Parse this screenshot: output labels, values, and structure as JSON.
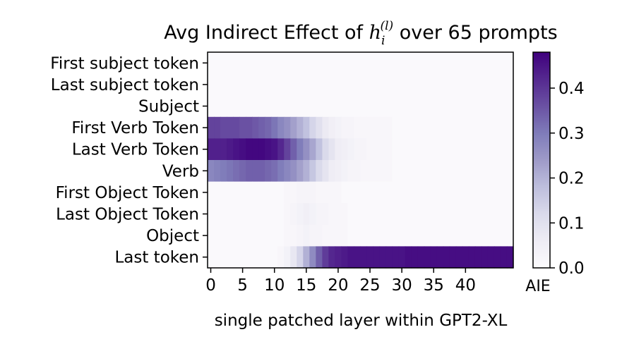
{
  "chart_data": {
    "type": "heatmap",
    "title_prefix": "Avg Indirect Effect of",
    "title_symbol_base": "h",
    "title_symbol_sub": "i",
    "title_symbol_sup": "(l)",
    "title_suffix": "over 65 prompts",
    "xlabel": "single patched layer within GPT2-XL",
    "ylabel": "",
    "colorbar_label": "AIE",
    "colormap": "Purples",
    "color_low": "#fcfbfd",
    "color_high": "#3f007d",
    "vmin": 0.0,
    "vmax": 0.48,
    "colorbar_ticks": [
      "0.0",
      "0.1",
      "0.2",
      "0.3",
      "0.4"
    ],
    "x_ticks": [
      0,
      5,
      10,
      15,
      20,
      25,
      30,
      35,
      40
    ],
    "rows": [
      "First subject token",
      "Last subject token",
      "Subject",
      "First Verb Token",
      "Last Verb Token",
      "Verb",
      "First Object Token",
      "Last Object Token",
      "Object",
      "Last token"
    ],
    "num_layers": 48,
    "series": [
      {
        "name": "First subject token",
        "values": [
          0.01,
          0.01,
          0.01,
          0.01,
          0.01,
          0.01,
          0.01,
          0.01,
          0.01,
          0.01,
          0.01,
          0.01,
          0.01,
          0.01,
          0.01,
          0.01,
          0.01,
          0.01,
          0.01,
          0.01,
          0.01,
          0.01,
          0.01,
          0.01,
          0.01,
          0.01,
          0.01,
          0.01,
          0.01,
          0.01,
          0.01,
          0.01,
          0.01,
          0.01,
          0.01,
          0.01,
          0.01,
          0.01,
          0.01,
          0.01,
          0.01,
          0.01,
          0.01,
          0.01,
          0.01,
          0.01,
          0.01,
          0.01
        ]
      },
      {
        "name": "Last subject token",
        "values": [
          0.01,
          0.01,
          0.01,
          0.01,
          0.01,
          0.01,
          0.01,
          0.01,
          0.01,
          0.01,
          0.01,
          0.01,
          0.01,
          0.01,
          0.01,
          0.01,
          0.01,
          0.01,
          0.01,
          0.01,
          0.01,
          0.01,
          0.01,
          0.01,
          0.01,
          0.01,
          0.01,
          0.01,
          0.01,
          0.01,
          0.01,
          0.01,
          0.01,
          0.01,
          0.01,
          0.01,
          0.01,
          0.01,
          0.01,
          0.01,
          0.01,
          0.01,
          0.01,
          0.01,
          0.01,
          0.01,
          0.01,
          0.01
        ]
      },
      {
        "name": "Subject",
        "values": [
          0.01,
          0.01,
          0.01,
          0.01,
          0.01,
          0.01,
          0.01,
          0.01,
          0.01,
          0.01,
          0.01,
          0.01,
          0.01,
          0.01,
          0.01,
          0.01,
          0.01,
          0.01,
          0.01,
          0.01,
          0.01,
          0.01,
          0.01,
          0.01,
          0.01,
          0.01,
          0.01,
          0.01,
          0.01,
          0.01,
          0.01,
          0.01,
          0.01,
          0.01,
          0.01,
          0.01,
          0.01,
          0.01,
          0.01,
          0.01,
          0.01,
          0.01,
          0.01,
          0.01,
          0.01,
          0.01,
          0.01,
          0.01
        ]
      },
      {
        "name": "First Verb Token",
        "values": [
          0.38,
          0.38,
          0.37,
          0.37,
          0.37,
          0.36,
          0.36,
          0.35,
          0.34,
          0.33,
          0.31,
          0.28,
          0.26,
          0.23,
          0.2,
          0.17,
          0.13,
          0.1,
          0.07,
          0.05,
          0.04,
          0.03,
          0.03,
          0.02,
          0.02,
          0.02,
          0.02,
          0.02,
          0.02,
          0.01,
          0.01,
          0.01,
          0.01,
          0.01,
          0.01,
          0.01,
          0.01,
          0.01,
          0.01,
          0.01,
          0.01,
          0.01,
          0.01,
          0.01,
          0.01,
          0.01,
          0.01,
          0.01
        ]
      },
      {
        "name": "Last Verb Token",
        "values": [
          0.43,
          0.43,
          0.43,
          0.44,
          0.45,
          0.46,
          0.47,
          0.47,
          0.47,
          0.46,
          0.45,
          0.42,
          0.38,
          0.34,
          0.3,
          0.26,
          0.22,
          0.17,
          0.12,
          0.09,
          0.06,
          0.05,
          0.04,
          0.03,
          0.03,
          0.02,
          0.02,
          0.02,
          0.02,
          0.01,
          0.01,
          0.01,
          0.01,
          0.01,
          0.01,
          0.01,
          0.01,
          0.01,
          0.01,
          0.01,
          0.01,
          0.01,
          0.01,
          0.01,
          0.01,
          0.01,
          0.01,
          0.01
        ]
      },
      {
        "name": "Verb",
        "values": [
          0.28,
          0.29,
          0.3,
          0.31,
          0.32,
          0.33,
          0.34,
          0.34,
          0.34,
          0.33,
          0.32,
          0.3,
          0.28,
          0.26,
          0.23,
          0.2,
          0.16,
          0.12,
          0.09,
          0.06,
          0.05,
          0.04,
          0.03,
          0.03,
          0.02,
          0.02,
          0.02,
          0.02,
          0.02,
          0.01,
          0.01,
          0.01,
          0.01,
          0.01,
          0.01,
          0.01,
          0.01,
          0.01,
          0.01,
          0.01,
          0.01,
          0.01,
          0.01,
          0.01,
          0.01,
          0.01,
          0.01,
          0.01
        ]
      },
      {
        "name": "First Object Token",
        "values": [
          0.01,
          0.01,
          0.01,
          0.01,
          0.01,
          0.01,
          0.01,
          0.01,
          0.01,
          0.01,
          0.01,
          0.01,
          0.02,
          0.02,
          0.03,
          0.03,
          0.03,
          0.02,
          0.02,
          0.02,
          0.02,
          0.01,
          0.01,
          0.01,
          0.01,
          0.01,
          0.01,
          0.01,
          0.01,
          0.01,
          0.01,
          0.01,
          0.01,
          0.01,
          0.01,
          0.01,
          0.01,
          0.01,
          0.01,
          0.01,
          0.01,
          0.01,
          0.01,
          0.01,
          0.01,
          0.01,
          0.01,
          0.01
        ]
      },
      {
        "name": "Last Object Token",
        "values": [
          0.01,
          0.01,
          0.01,
          0.01,
          0.01,
          0.01,
          0.01,
          0.01,
          0.01,
          0.01,
          0.01,
          0.01,
          0.02,
          0.03,
          0.04,
          0.05,
          0.04,
          0.03,
          0.03,
          0.02,
          0.02,
          0.02,
          0.01,
          0.01,
          0.01,
          0.01,
          0.01,
          0.01,
          0.01,
          0.01,
          0.01,
          0.01,
          0.01,
          0.01,
          0.01,
          0.01,
          0.01,
          0.01,
          0.01,
          0.01,
          0.01,
          0.01,
          0.01,
          0.01,
          0.01,
          0.01,
          0.01,
          0.01
        ]
      },
      {
        "name": "Object",
        "values": [
          0.01,
          0.01,
          0.01,
          0.01,
          0.01,
          0.01,
          0.01,
          0.01,
          0.01,
          0.01,
          0.01,
          0.01,
          0.02,
          0.02,
          0.03,
          0.04,
          0.03,
          0.03,
          0.02,
          0.02,
          0.02,
          0.02,
          0.01,
          0.01,
          0.01,
          0.01,
          0.01,
          0.01,
          0.01,
          0.01,
          0.01,
          0.01,
          0.01,
          0.01,
          0.01,
          0.01,
          0.01,
          0.01,
          0.01,
          0.01,
          0.01,
          0.01,
          0.01,
          0.01,
          0.01,
          0.01,
          0.01,
          0.01
        ]
      },
      {
        "name": "Last token",
        "values": [
          0.01,
          0.01,
          0.01,
          0.01,
          0.01,
          0.01,
          0.01,
          0.01,
          0.01,
          0.01,
          0.01,
          0.02,
          0.04,
          0.08,
          0.13,
          0.2,
          0.27,
          0.34,
          0.39,
          0.42,
          0.43,
          0.44,
          0.45,
          0.45,
          0.45,
          0.45,
          0.45,
          0.45,
          0.45,
          0.45,
          0.45,
          0.46,
          0.46,
          0.46,
          0.46,
          0.46,
          0.46,
          0.46,
          0.46,
          0.46,
          0.46,
          0.46,
          0.46,
          0.46,
          0.46,
          0.46,
          0.46,
          0.46
        ]
      }
    ]
  }
}
